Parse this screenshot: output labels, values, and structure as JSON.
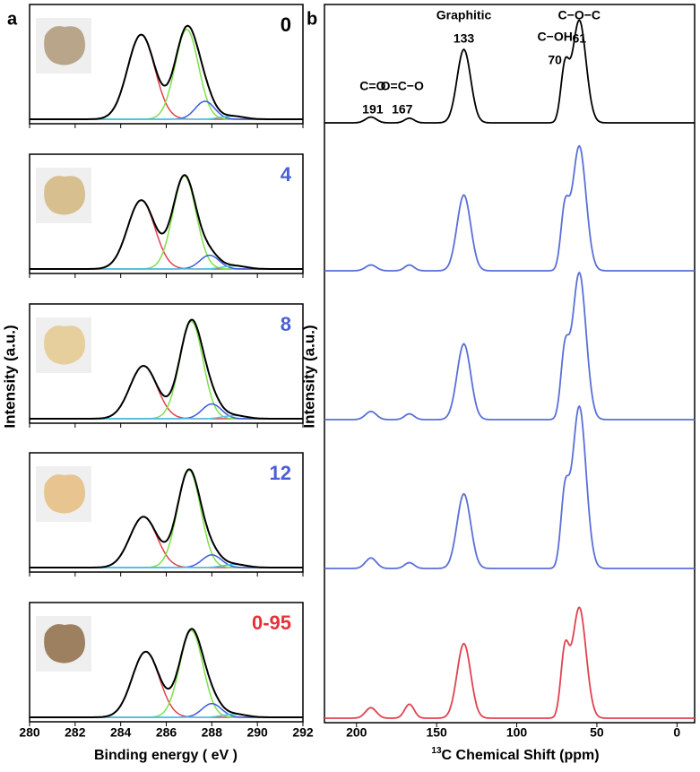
{
  "chart_data": [
    {
      "type": "peakfit",
      "panel_label": "a",
      "xlabel": "Binding energy ( eV )",
      "ylabel": "Intensity (a.u.)",
      "xlim": [
        280,
        292
      ],
      "xticks": [
        280,
        282,
        284,
        286,
        288,
        290,
        292
      ],
      "ylim": [
        0,
        1
      ],
      "envelope_color": "#000000",
      "subplots": [
        {
          "label": "0",
          "label_color": "#000000",
          "components": [
            {
              "color": "#e0424f",
              "center": 284.9,
              "height": 0.8,
              "width": 1.4
            },
            {
              "color": "#7ee04a",
              "center": 286.9,
              "height": 0.85,
              "width": 1.2
            },
            {
              "color": "#3b5be0",
              "center": 287.7,
              "height": 0.17,
              "width": 1.0
            },
            {
              "color": "#4fc8e0",
              "center": 288.9,
              "height": 0.03,
              "width": 1.2
            }
          ]
        },
        {
          "label": "4",
          "label_color": "#4a5fd6",
          "components": [
            {
              "color": "#e0424f",
              "center": 284.9,
              "height": 0.65,
              "width": 1.4
            },
            {
              "color": "#7ee04a",
              "center": 286.8,
              "height": 0.88,
              "width": 1.2
            },
            {
              "color": "#3b5be0",
              "center": 287.9,
              "height": 0.13,
              "width": 1.0
            },
            {
              "color": "#4fc8e0",
              "center": 289.0,
              "height": 0.03,
              "width": 1.2
            }
          ]
        },
        {
          "label": "8",
          "label_color": "#4a5fd6",
          "components": [
            {
              "color": "#e0424f",
              "center": 285.0,
              "height": 0.5,
              "width": 1.4
            },
            {
              "color": "#7ee04a",
              "center": 287.1,
              "height": 0.92,
              "width": 1.2
            },
            {
              "color": "#3b5be0",
              "center": 288.0,
              "height": 0.14,
              "width": 1.0
            },
            {
              "color": "#4fc8e0",
              "center": 289.0,
              "height": 0.03,
              "width": 1.2
            }
          ]
        },
        {
          "label": "12",
          "label_color": "#4a5fd6",
          "components": [
            {
              "color": "#e0424f",
              "center": 285.0,
              "height": 0.48,
              "width": 1.4
            },
            {
              "color": "#7ee04a",
              "center": 287.0,
              "height": 0.92,
              "width": 1.2
            },
            {
              "color": "#3b5be0",
              "center": 288.0,
              "height": 0.12,
              "width": 1.0
            },
            {
              "color": "#4fc8e0",
              "center": 289.0,
              "height": 0.03,
              "width": 1.2
            }
          ]
        },
        {
          "label": "0-95",
          "label_color": "#e8303a",
          "components": [
            {
              "color": "#e0424f",
              "center": 285.1,
              "height": 0.62,
              "width": 1.4
            },
            {
              "color": "#7ee04a",
              "center": 287.1,
              "height": 0.82,
              "width": 1.2
            },
            {
              "color": "#3b5be0",
              "center": 288.0,
              "height": 0.13,
              "width": 1.0
            },
            {
              "color": "#4fc8e0",
              "center": 289.0,
              "height": 0.03,
              "width": 1.2
            }
          ]
        }
      ]
    },
    {
      "type": "spectra",
      "panel_label": "b",
      "xlabel_sup": "13",
      "xlabel": "C Chemical Shift (ppm)",
      "ylabel": "Intensity (a.u.)",
      "xlim": [
        220,
        -11
      ],
      "xticks": [
        200,
        150,
        100,
        50,
        0
      ],
      "ylim": [
        0,
        1
      ],
      "annotations": [
        {
          "label": "C=O",
          "value": 191
        },
        {
          "label": "O=C−O",
          "value": 167
        },
        {
          "label": "Graphitic",
          "value": 133
        },
        {
          "label": "C−OH",
          "value": 70
        },
        {
          "label": "C−O−C",
          "value": 61
        }
      ],
      "peak_widths": [
        8,
        7,
        10,
        6,
        10
      ],
      "series": [
        {
          "color": "#000000",
          "values": [
            0.05,
            0.04,
            0.63,
            0.45,
            0.88
          ]
        },
        {
          "color": "#5a6fd8",
          "values": [
            0.05,
            0.05,
            0.65,
            0.5,
            1.07
          ]
        },
        {
          "color": "#5a6fd8",
          "values": [
            0.07,
            0.05,
            0.65,
            0.55,
            1.26
          ]
        },
        {
          "color": "#5a6fd8",
          "values": [
            0.09,
            0.05,
            0.64,
            0.6,
            1.39
          ]
        },
        {
          "color": "#e0424f",
          "values": [
            0.09,
            0.12,
            0.64,
            0.55,
            0.95
          ]
        }
      ]
    }
  ]
}
